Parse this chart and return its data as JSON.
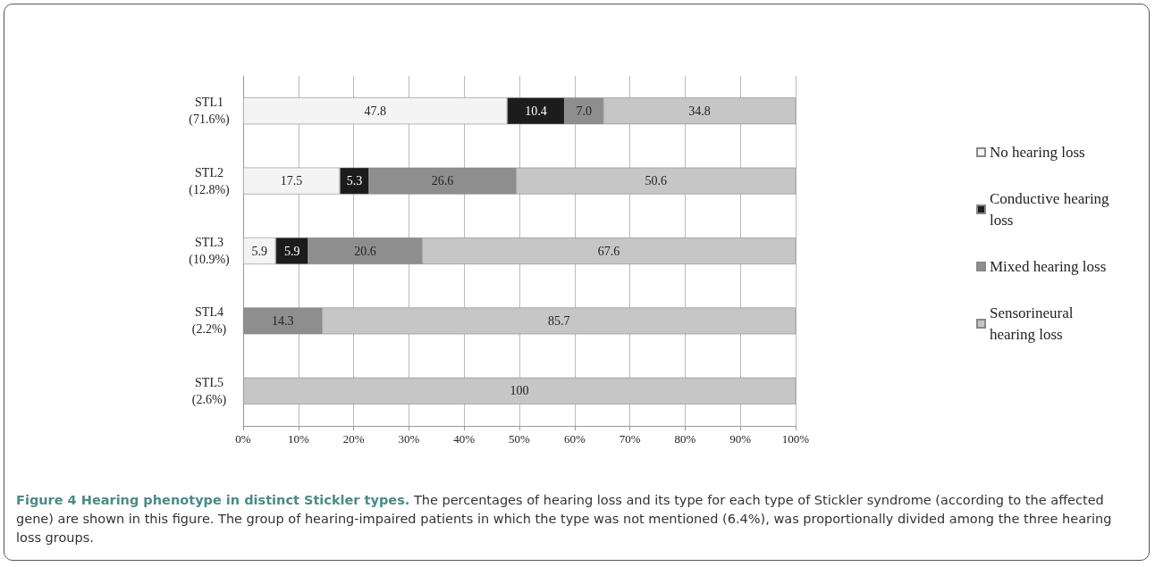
{
  "chart_data": {
    "type": "bar",
    "orientation": "horizontal",
    "stacked": true,
    "title": "Figure 4 Hearing phenotype in distinct Stickler types.",
    "annotations": [
      "The percentages of hearing loss and its type for each type of Stickler syndrome (according to the affected gene) are shown in this figure. The group of hearing-impaired patients in which the type was not mentioned (6.4%), was proportionally divided among the three hearing loss groups."
    ],
    "categories": [
      "STL1\n(71.6%)",
      "STL2\n(12.8%)",
      "STL3\n(10.9%)",
      "STL4\n(2.2%)",
      "STL5\n(2.6%)"
    ],
    "series": [
      {
        "name": "No hearing loss",
        "color": "#f4f4f4",
        "values": [
          47.8,
          17.5,
          5.9,
          null,
          null
        ]
      },
      {
        "name": "Conductive hearing loss",
        "color": "#1c1c1c",
        "values": [
          10.4,
          5.3,
          5.9,
          null,
          null
        ]
      },
      {
        "name": "Mixed hearing loss",
        "color": "#8e8e8e",
        "values": [
          7.0,
          26.6,
          20.6,
          14.3,
          null
        ],
        "value_labels": [
          "7.0",
          "26.6",
          "20.6",
          "14.3",
          null
        ]
      },
      {
        "name": "Sensorineural hearing loss",
        "color": "#c6c6c6",
        "values": [
          34.8,
          50.6,
          67.6,
          85.7,
          100
        ]
      }
    ],
    "xlim": [
      0,
      100
    ],
    "xticks": [
      {
        "value": 0,
        "label": "0%"
      },
      {
        "value": 10,
        "label": "10%"
      },
      {
        "value": 20,
        "label": "20%"
      },
      {
        "value": 30,
        "label": "30%"
      },
      {
        "value": 40,
        "label": "40%"
      },
      {
        "value": 50,
        "label": "50%"
      },
      {
        "value": 60,
        "label": "60%"
      },
      {
        "value": 70,
        "label": "70%"
      },
      {
        "value": 80,
        "label": "80%"
      },
      {
        "value": 90,
        "label": "90%"
      },
      {
        "value": 100,
        "label": "100%"
      }
    ],
    "grid": "x",
    "legend": "right",
    "data_labels": true
  }
}
